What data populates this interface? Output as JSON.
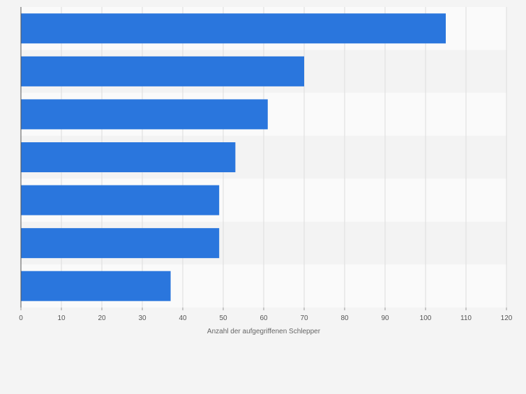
{
  "chart_data": {
    "type": "bar",
    "orientation": "horizontal",
    "categories": [
      "",
      "",
      "",
      "",
      "",
      "",
      ""
    ],
    "values": [
      105,
      70,
      61,
      53,
      49,
      49,
      37
    ],
    "title": "",
    "xlabel": "Anzahl der aufgegriffenen Schlepper",
    "ylabel": "",
    "xlim": [
      0,
      120
    ],
    "x_ticks": [
      "0",
      "10",
      "20",
      "30",
      "40",
      "50",
      "60",
      "70",
      "80",
      "90",
      "100",
      "110",
      "120"
    ],
    "grid": "vertical",
    "legend": "none",
    "colors": {
      "bar": "#2a76dd",
      "row_band_light": "#fafafa",
      "row_band_dark": "#f3f3f3",
      "page_background": "#f4f4f4",
      "gridline": "#dcdcdc",
      "axis_line": "#555555",
      "tick_text": "#555555",
      "axis_label_text": "#666666"
    }
  }
}
